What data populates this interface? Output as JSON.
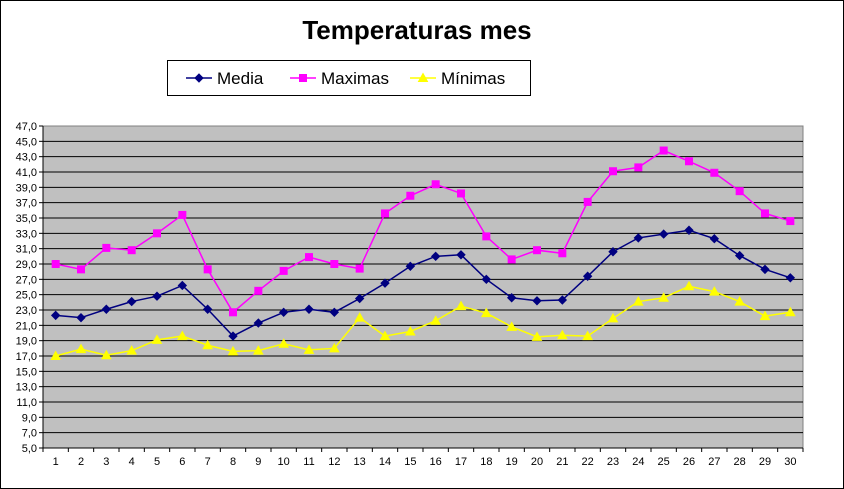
{
  "chart_data": {
    "type": "line",
    "title": "Temperaturas mes",
    "categories": [
      "1",
      "2",
      "3",
      "4",
      "5",
      "6",
      "7",
      "8",
      "9",
      "10",
      "11",
      "12",
      "13",
      "14",
      "15",
      "16",
      "17",
      "18",
      "19",
      "20",
      "21",
      "22",
      "23",
      "24",
      "25",
      "26",
      "27",
      "28",
      "29",
      "30"
    ],
    "y_ticks": [
      "5,0",
      "7,0",
      "9,0",
      "11,0",
      "13,0",
      "15,0",
      "17,0",
      "19,0",
      "21,0",
      "23,0",
      "25,0",
      "27,0",
      "29,0",
      "31,0",
      "33,0",
      "35,0",
      "37,0",
      "39,0",
      "41,0",
      "43,0",
      "45,0",
      "47,0"
    ],
    "ylim": [
      5,
      47
    ],
    "grid": true,
    "legend_position": "top",
    "plot_background": "#c0c0c0",
    "series": [
      {
        "name": "Media",
        "color": "#000080",
        "marker": "diamond",
        "values": [
          22.3,
          22.0,
          23.1,
          24.1,
          24.8,
          26.2,
          23.1,
          19.6,
          21.3,
          22.7,
          23.1,
          22.7,
          24.5,
          26.5,
          28.7,
          30.0,
          30.2,
          27.0,
          24.6,
          24.2,
          24.3,
          27.4,
          30.6,
          32.4,
          32.9,
          33.4,
          32.3,
          30.1,
          28.3,
          27.2
        ]
      },
      {
        "name": "Maximas",
        "color": "#ff00ff",
        "marker": "square",
        "values": [
          29.0,
          28.3,
          31.1,
          30.8,
          33.0,
          35.4,
          28.3,
          22.7,
          25.5,
          28.1,
          29.9,
          29.0,
          28.4,
          35.6,
          37.9,
          39.4,
          38.2,
          32.6,
          29.6,
          30.8,
          30.4,
          37.1,
          41.1,
          41.6,
          43.8,
          42.4,
          40.9,
          38.5,
          35.6,
          34.6
        ]
      },
      {
        "name": "Mínimas",
        "color": "#ffff00",
        "marker": "triangle",
        "values": [
          17.0,
          17.9,
          17.1,
          17.7,
          19.1,
          19.6,
          18.4,
          17.6,
          17.7,
          18.6,
          17.8,
          18.0,
          22.0,
          19.6,
          20.2,
          21.6,
          23.5,
          22.6,
          20.8,
          19.5,
          19.7,
          19.6,
          21.9,
          24.1,
          24.6,
          26.1,
          25.4,
          24.1,
          22.2,
          22.7
        ]
      }
    ]
  }
}
